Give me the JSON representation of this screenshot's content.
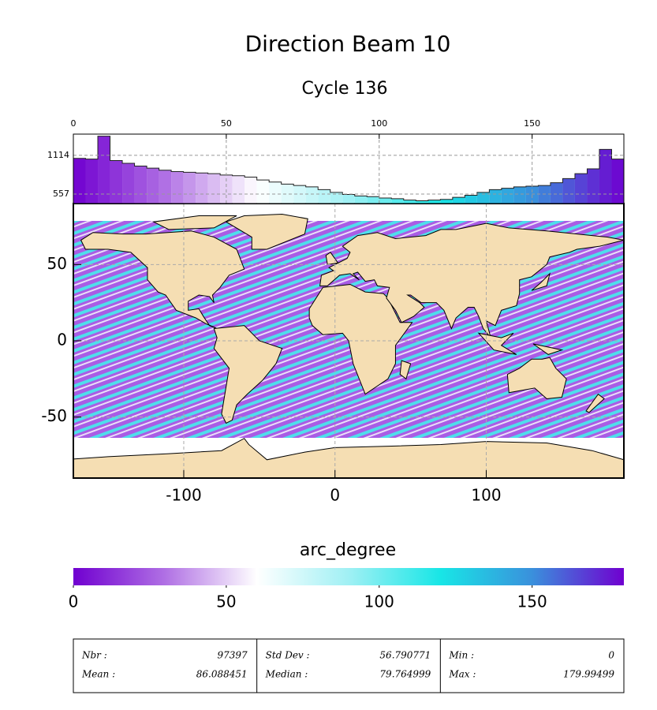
{
  "title": "Direction Beam 10",
  "subtitle": "Cycle 136",
  "chart_data": [
    {
      "type": "histogram",
      "bins": [
        0,
        4,
        8,
        12,
        16,
        20,
        24,
        28,
        32,
        36,
        40,
        44,
        48,
        52,
        56,
        60,
        64,
        68,
        72,
        76,
        80,
        84,
        88,
        92,
        96,
        100,
        104,
        108,
        112,
        116,
        120,
        124,
        128,
        132,
        136,
        140,
        144,
        148,
        152,
        156,
        160,
        164,
        168,
        172,
        176,
        180
      ],
      "values": [
        1070,
        1060,
        1390,
        1040,
        1000,
        960,
        930,
        900,
        880,
        870,
        860,
        850,
        830,
        820,
        800,
        760,
        730,
        700,
        680,
        660,
        620,
        580,
        550,
        530,
        520,
        500,
        490,
        470,
        460,
        470,
        480,
        510,
        540,
        580,
        620,
        640,
        660,
        670,
        680,
        720,
        780,
        850,
        920,
        1200,
        1060
      ],
      "xlim": [
        0,
        180
      ],
      "xticks": [
        0,
        50,
        100,
        150
      ],
      "ylim": [
        420,
        1420
      ],
      "yticks": [
        557,
        1114
      ],
      "grid": true
    },
    {
      "type": "map",
      "xlim": [
        -173,
        191
      ],
      "ylim": [
        -90,
        90
      ],
      "xticks": [
        -100,
        0,
        100
      ],
      "yticks": [
        -50,
        0,
        50
      ],
      "grid": true,
      "land_color": "#f5deb3"
    },
    {
      "type": "colorbar",
      "label": "arc_degree",
      "xlim": [
        0,
        180
      ],
      "xticks": [
        0,
        50,
        100,
        150
      ],
      "colormap": [
        "#7000d0",
        "#b070e4",
        "#ffffff",
        "#a0f0f4",
        "#18e6e6",
        "#3a90dc",
        "#7000d0"
      ]
    }
  ],
  "stats": {
    "rows": [
      [
        {
          "label": "Nbr :",
          "value": 97397
        },
        {
          "label": "Std Dev :",
          "value": 56.790771
        },
        {
          "label": "Min :",
          "value": 0
        }
      ],
      [
        {
          "label": "Mean :",
          "value": 86.088451
        },
        {
          "label": "Median :",
          "value": 79.764999
        },
        {
          "label": "Max :",
          "value": 179.99499
        }
      ]
    ]
  }
}
